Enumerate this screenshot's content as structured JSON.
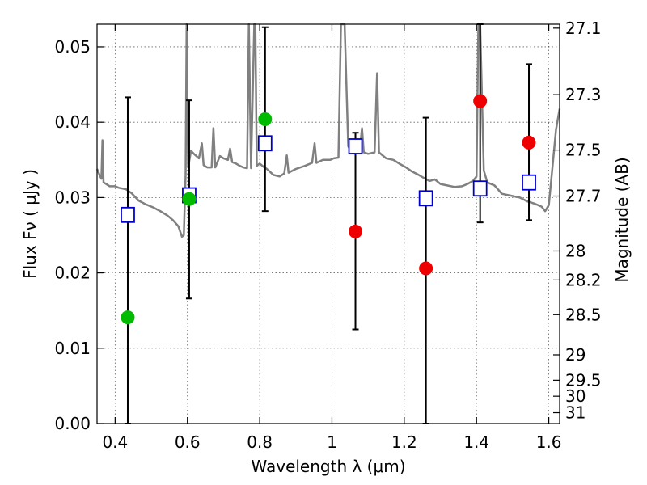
{
  "chart_data": {
    "type": "scatter",
    "title": "",
    "xlabel": "Wavelength  λ (μm)",
    "ylabel": "Flux  Fν  ( μJy )",
    "ylabel_right": "Magnitude (AB)",
    "xlim": [
      0.35,
      1.63
    ],
    "ylim": [
      0.0,
      0.053
    ],
    "grid": true,
    "x_ticks": [
      0.4,
      0.6,
      0.8,
      1.0,
      1.2,
      1.4,
      1.6
    ],
    "x_tick_labels": [
      "0.4",
      "0.6",
      "0.8",
      "1",
      "1.2",
      "1.4",
      "1.6"
    ],
    "y_ticks": [
      0.0,
      0.01,
      0.02,
      0.03,
      0.04,
      0.05
    ],
    "y_tick_labels": [
      "0.00",
      "0.01",
      "0.02",
      "0.03",
      "0.04",
      "0.05"
    ],
    "right_ticks_mag": [
      27.1,
      27.3,
      27.5,
      27.7,
      28.0,
      28.2,
      28.5,
      29.0,
      29.5,
      30.0,
      31.0
    ],
    "right_tick_labels": [
      "27.1",
      "27.3",
      "27.5",
      "27.7",
      "28",
      "28.2",
      "28.5",
      "29",
      "29.5",
      "30",
      "31"
    ],
    "colors": {
      "spectrum": "#808080",
      "model": "#0000cc",
      "green": "#00bb00",
      "red": "#ee0000",
      "errorbar": "#000000"
    },
    "series": [
      {
        "marker": "square",
        "color": "#0000cc",
        "x": [
          0.435,
          0.605,
          0.815,
          1.065,
          1.26,
          1.41,
          1.545
        ],
        "y": [
          0.0277,
          0.0303,
          0.0372,
          0.0368,
          0.0299,
          0.0312,
          0.032
        ]
      },
      {
        "marker": "circle",
        "color": "#00bb00",
        "x": [
          0.435,
          0.605,
          0.815
        ],
        "y": [
          0.0141,
          0.0298,
          0.0404
        ]
      },
      {
        "marker": "circle",
        "color": "#ee0000",
        "x": [
          1.065,
          1.26,
          1.41,
          1.545
        ],
        "y": [
          0.0255,
          0.0206,
          0.0428,
          0.0373
        ]
      }
    ],
    "error_bars": [
      {
        "x": 0.435,
        "low": 0.0,
        "high": 0.0433
      },
      {
        "x": 0.605,
        "low": 0.0166,
        "high": 0.0429
      },
      {
        "x": 0.815,
        "low": 0.0282,
        "high": 0.0526
      },
      {
        "x": 1.065,
        "low": 0.0125,
        "high": 0.0386
      },
      {
        "x": 1.26,
        "low": 0.0,
        "high": 0.0406
      },
      {
        "x": 1.41,
        "low": 0.0267,
        "high": 0.053
      },
      {
        "x": 1.545,
        "low": 0.027,
        "high": 0.0477
      }
    ],
    "spectrum": [
      [
        0.35,
        0.0338
      ],
      [
        0.357,
        0.033
      ],
      [
        0.362,
        0.0325
      ],
      [
        0.365,
        0.0376
      ],
      [
        0.368,
        0.032
      ],
      [
        0.375,
        0.0318
      ],
      [
        0.385,
        0.0315
      ],
      [
        0.4,
        0.0315
      ],
      [
        0.41,
        0.0313
      ],
      [
        0.43,
        0.0311
      ],
      [
        0.445,
        0.0306
      ],
      [
        0.465,
        0.0296
      ],
      [
        0.485,
        0.0291
      ],
      [
        0.505,
        0.0287
      ],
      [
        0.525,
        0.0282
      ],
      [
        0.545,
        0.0276
      ],
      [
        0.56,
        0.027
      ],
      [
        0.575,
        0.0262
      ],
      [
        0.585,
        0.0248
      ],
      [
        0.59,
        0.025
      ],
      [
        0.595,
        0.033
      ],
      [
        0.598,
        0.053
      ],
      [
        0.602,
        0.034
      ],
      [
        0.61,
        0.0362
      ],
      [
        0.62,
        0.0357
      ],
      [
        0.632,
        0.0352
      ],
      [
        0.64,
        0.0372
      ],
      [
        0.645,
        0.0343
      ],
      [
        0.655,
        0.034
      ],
      [
        0.667,
        0.034
      ],
      [
        0.672,
        0.0392
      ],
      [
        0.677,
        0.034
      ],
      [
        0.69,
        0.0355
      ],
      [
        0.7,
        0.0352
      ],
      [
        0.712,
        0.035
      ],
      [
        0.718,
        0.0365
      ],
      [
        0.724,
        0.0347
      ],
      [
        0.735,
        0.0345
      ],
      [
        0.745,
        0.0342
      ],
      [
        0.755,
        0.034
      ],
      [
        0.765,
        0.0339
      ],
      [
        0.77,
        0.053
      ],
      [
        0.776,
        0.0339
      ],
      [
        0.785,
        0.053
      ],
      [
        0.788,
        0.053
      ],
      [
        0.792,
        0.0342
      ],
      [
        0.8,
        0.0345
      ],
      [
        0.813,
        0.034
      ],
      [
        0.82,
        0.0338
      ],
      [
        0.838,
        0.033
      ],
      [
        0.855,
        0.0328
      ],
      [
        0.868,
        0.0332
      ],
      [
        0.875,
        0.0356
      ],
      [
        0.88,
        0.0333
      ],
      [
        0.9,
        0.0338
      ],
      [
        0.925,
        0.0342
      ],
      [
        0.945,
        0.0346
      ],
      [
        0.952,
        0.0372
      ],
      [
        0.957,
        0.0346
      ],
      [
        0.975,
        0.035
      ],
      [
        0.995,
        0.035
      ],
      [
        1.005,
        0.0352
      ],
      [
        1.018,
        0.0353
      ],
      [
        1.025,
        0.053
      ],
      [
        1.035,
        0.053
      ],
      [
        1.045,
        0.0368
      ],
      [
        1.055,
        0.036
      ],
      [
        1.065,
        0.0358
      ],
      [
        1.078,
        0.0368
      ],
      [
        1.083,
        0.0392
      ],
      [
        1.088,
        0.036
      ],
      [
        1.1,
        0.0358
      ],
      [
        1.118,
        0.036
      ],
      [
        1.125,
        0.0465
      ],
      [
        1.13,
        0.036
      ],
      [
        1.15,
        0.0352
      ],
      [
        1.17,
        0.035
      ],
      [
        1.19,
        0.0344
      ],
      [
        1.205,
        0.034
      ],
      [
        1.22,
        0.0335
      ],
      [
        1.24,
        0.033
      ],
      [
        1.258,
        0.0325
      ],
      [
        1.27,
        0.0322
      ],
      [
        1.285,
        0.0324
      ],
      [
        1.3,
        0.0318
      ],
      [
        1.32,
        0.0316
      ],
      [
        1.34,
        0.0314
      ],
      [
        1.36,
        0.0315
      ],
      [
        1.375,
        0.0318
      ],
      [
        1.39,
        0.0322
      ],
      [
        1.4,
        0.0328
      ],
      [
        1.405,
        0.053
      ],
      [
        1.41,
        0.053
      ],
      [
        1.42,
        0.0336
      ],
      [
        1.43,
        0.032
      ],
      [
        1.45,
        0.0316
      ],
      [
        1.47,
        0.0305
      ],
      [
        1.5,
        0.0302
      ],
      [
        1.52,
        0.03
      ],
      [
        1.54,
        0.0295
      ],
      [
        1.56,
        0.0292
      ],
      [
        1.58,
        0.0288
      ],
      [
        1.59,
        0.0282
      ],
      [
        1.6,
        0.029
      ],
      [
        1.61,
        0.034
      ],
      [
        1.62,
        0.039
      ],
      [
        1.63,
        0.0418
      ]
    ]
  }
}
